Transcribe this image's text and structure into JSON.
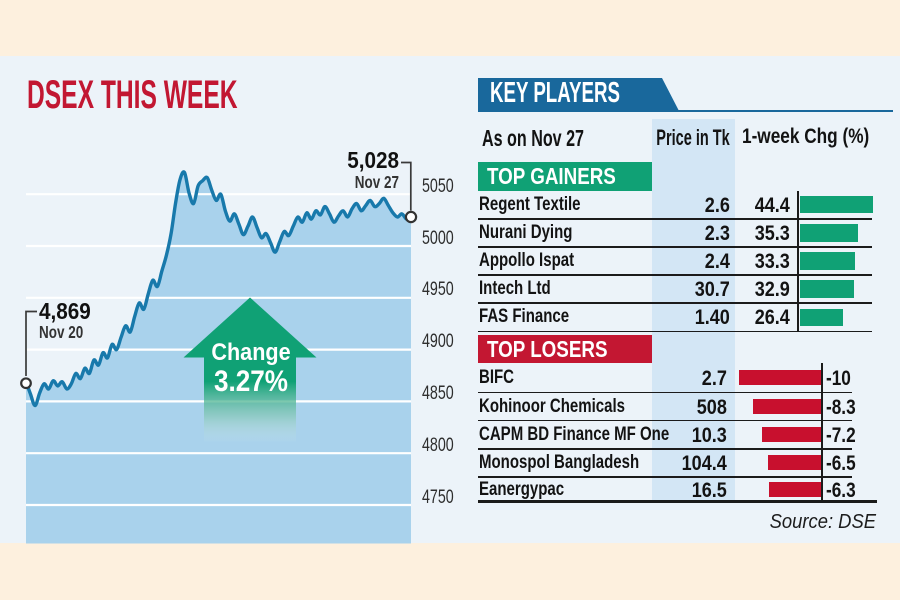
{
  "title": "DSEX THIS WEEK",
  "colors": {
    "background_cream": "#fdf0de",
    "panel_blue": "#ecf3f9",
    "area_fill": "#a9d2ec",
    "line_blue": "#1879ab",
    "accent_red": "#c21732",
    "accent_green": "#10a175",
    "banner_blue": "#19689c",
    "price_column": "#d3e6f5",
    "text_dark": "#131313"
  },
  "chart_data": {
    "type": "area",
    "title": "DSEX THIS WEEK",
    "ylabel": "",
    "xlabel": "",
    "y_ticks": [
      "5050",
      "5000",
      "4950",
      "4900",
      "4850",
      "4800",
      "4750"
    ],
    "ylim": [
      4725,
      5080
    ],
    "x_range_labels": [
      "Nov 20",
      "Nov 27"
    ],
    "start_annotation": {
      "value": "4,869",
      "date": "Nov 20"
    },
    "end_annotation": {
      "value": "5,028",
      "date": "Nov 27"
    },
    "change_callout": {
      "line1": "Change",
      "line2": "3.27%"
    },
    "grid": true,
    "values": [
      4869,
      4857,
      4846,
      4858,
      4867,
      4862,
      4870,
      4865,
      4869,
      4862,
      4867,
      4877,
      4872,
      4882,
      4877,
      4890,
      4885,
      4897,
      4892,
      4905,
      4900,
      4912,
      4923,
      4917,
      4932,
      4945,
      4939,
      4954,
      4967,
      4961,
      4976,
      4991,
      5011,
      5041,
      5064,
      5071,
      5051,
      5041,
      5058,
      5063,
      5066,
      5054,
      5044,
      5050,
      5034,
      5024,
      5031,
      5021,
      5011,
      5019,
      5028,
      5018,
      5008,
      5012,
      5003,
      4994,
      5004,
      5014,
      5010,
      5019,
      5028,
      5023,
      5032,
      5026,
      5034,
      5030,
      5038,
      5031,
      5023,
      5029,
      5034,
      5028,
      5036,
      5041,
      5034,
      5039,
      5044,
      5038,
      5041,
      5046,
      5039,
      5032,
      5028,
      5031,
      5026,
      5028
    ]
  },
  "table": {
    "header_banner": "KEY PLAYERS",
    "columns": [
      "As on Nov 27",
      "Price in Tk",
      "1-week Chg (%)"
    ],
    "gainers": {
      "banner": "TOP GAINERS",
      "rows": [
        {
          "name": "Regent Textile",
          "price": "2.6",
          "chg": "44.4",
          "chg_val": 44.4
        },
        {
          "name": "Nurani Dying",
          "price": "2.3",
          "chg": "35.3",
          "chg_val": 35.3
        },
        {
          "name": "Appollo Ispat",
          "price": "2.4",
          "chg": "33.3",
          "chg_val": 33.3
        },
        {
          "name": "Intech Ltd",
          "price": "30.7",
          "chg": "32.9",
          "chg_val": 32.9
        },
        {
          "name": "FAS Finance",
          "price": "1.40",
          "chg": "26.4",
          "chg_val": 26.4
        }
      ]
    },
    "losers": {
      "banner": "TOP LOSERS",
      "rows": [
        {
          "name": "BIFC",
          "price": "2.7",
          "chg": "-10",
          "chg_val": -10
        },
        {
          "name": "Kohinoor Chemicals",
          "price": "508",
          "chg": "-8.3",
          "chg_val": -8.3
        },
        {
          "name": "CAPM BD Finance MF One",
          "price": "10.3",
          "chg": "-7.2",
          "chg_val": -7.2
        },
        {
          "name": "Monospol Bangladesh",
          "price": "104.4",
          "chg": "-6.5",
          "chg_val": -6.5
        },
        {
          "name": "Eanergypac",
          "price": "16.5",
          "chg": "-6.3",
          "chg_val": -6.3
        }
      ]
    },
    "source": "Source: DSE"
  }
}
